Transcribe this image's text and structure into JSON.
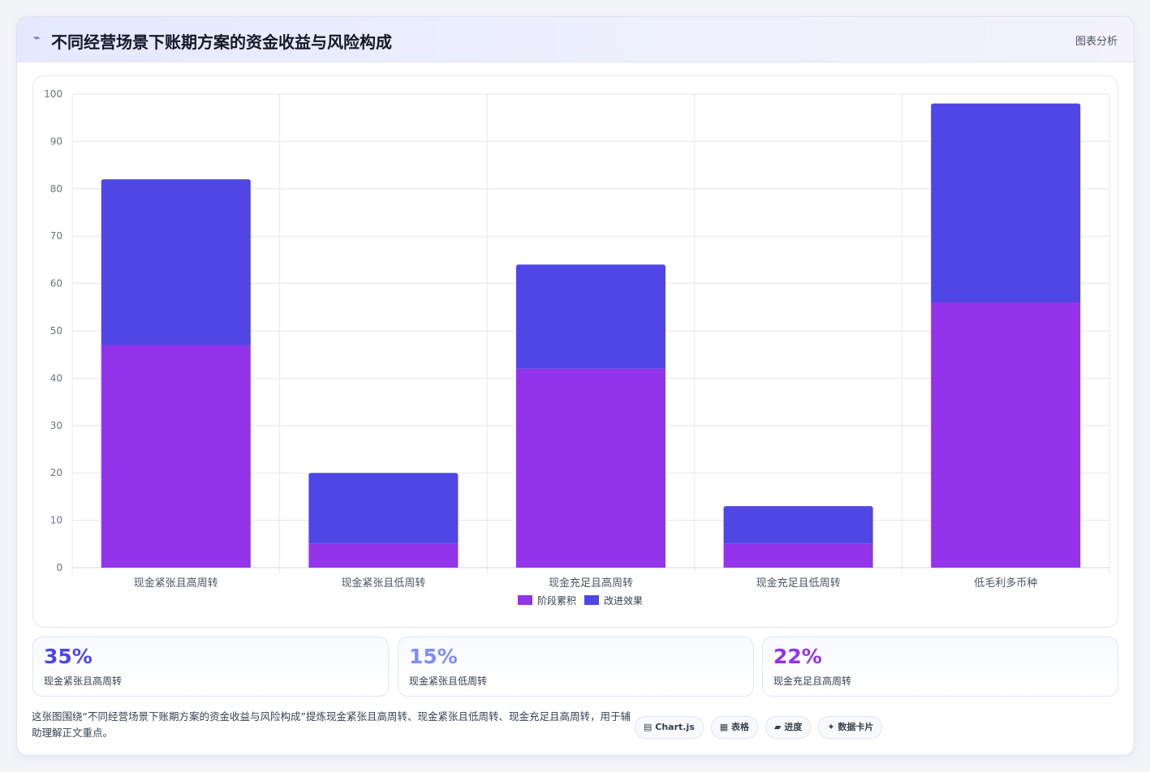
{
  "header": {
    "icon": "⌁",
    "title": "不同经营场景下账期方案的资金收益与风险构成",
    "tag": "图表分析"
  },
  "chart_data": {
    "type": "bar",
    "stacked": true,
    "categories": [
      "现金紧张且高周转",
      "现金紧张且低周转",
      "现金充足且高周转",
      "现金充足且低周转",
      "低毛利多币种"
    ],
    "series": [
      {
        "name": "阶段累积",
        "values": [
          47,
          5,
          42,
          5,
          56
        ],
        "color": "#9333ea"
      },
      {
        "name": "改进效果",
        "values": [
          35,
          15,
          22,
          8,
          42
        ],
        "color": "#4f46e5"
      }
    ],
    "ylim": [
      0,
      100
    ],
    "yticks": [
      0,
      10,
      20,
      30,
      40,
      50,
      60,
      70,
      80,
      90,
      100
    ],
    "grid": true,
    "legend": "bottom"
  },
  "stats": [
    {
      "value": "35%",
      "label": "现金紧张且高周转",
      "color": "#4f46e5"
    },
    {
      "value": "15%",
      "label": "现金紧张且低周转",
      "color": "#818cf8"
    },
    {
      "value": "22%",
      "label": "现金充足且高周转",
      "color": "#9333ea"
    }
  ],
  "caption": "这张图围绕“不同经营场景下账期方案的资金收益与风险构成”提炼现金紧张且高周转、现金紧张且低周转、现金充足且高周转，用于辅助理解正文重点。",
  "chips": [
    {
      "icon": "▤",
      "label": "Chart.js"
    },
    {
      "icon": "▦",
      "label": "表格"
    },
    {
      "icon": "▰",
      "label": "进度"
    },
    {
      "icon": "✦",
      "label": "数据卡片"
    }
  ]
}
